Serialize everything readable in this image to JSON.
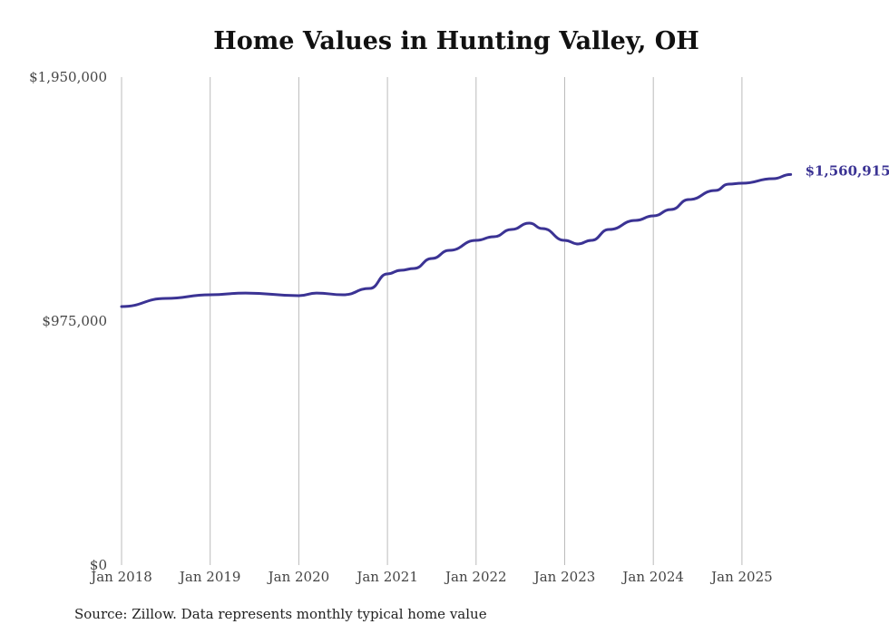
{
  "chart_data": {
    "type": "line",
    "title": "Home Values in Hunting Valley, OH",
    "source": "Source: Zillow. Data represents monthly typical home value",
    "xlabel": "",
    "ylabel": "",
    "ylim": [
      0,
      1950000
    ],
    "y_ticks": [
      0,
      975000,
      1950000
    ],
    "y_tick_labels": [
      "$0",
      "$975,000",
      "$1,950,000"
    ],
    "x_ticks": [
      2018,
      2019,
      2020,
      2021,
      2022,
      2023,
      2024,
      2025
    ],
    "x_tick_labels": [
      "Jan 2018",
      "Jan 2019",
      "Jan 2020",
      "Jan 2021",
      "Jan 2022",
      "Jan 2023",
      "Jan 2024",
      "Jan 2025"
    ],
    "xlim": [
      2017.6,
      2026.3
    ],
    "grid": "vertical",
    "line_color": "#3b3394",
    "end_label": "$1,560,915",
    "series": [
      {
        "name": "Typical home value",
        "x": [
          2018.0,
          2018.5,
          2019.0,
          2019.4,
          2020.0,
          2020.2,
          2020.5,
          2020.8,
          2021.0,
          2021.15,
          2021.3,
          2021.5,
          2021.7,
          2022.0,
          2022.2,
          2022.4,
          2022.6,
          2022.75,
          2023.0,
          2023.15,
          2023.3,
          2023.5,
          2023.8,
          2024.0,
          2024.2,
          2024.4,
          2024.7,
          2024.85,
          2025.0,
          2025.35,
          2025.55
        ],
        "values": [
          1033000,
          1065600,
          1080100,
          1087000,
          1076500,
          1087000,
          1080100,
          1105500,
          1163500,
          1178000,
          1185200,
          1225100,
          1257700,
          1297600,
          1312100,
          1341100,
          1366400,
          1344700,
          1297600,
          1283100,
          1297600,
          1341100,
          1377300,
          1395400,
          1420800,
          1460700,
          1496900,
          1522300,
          1525900,
          1544000,
          1560915
        ]
      }
    ]
  }
}
